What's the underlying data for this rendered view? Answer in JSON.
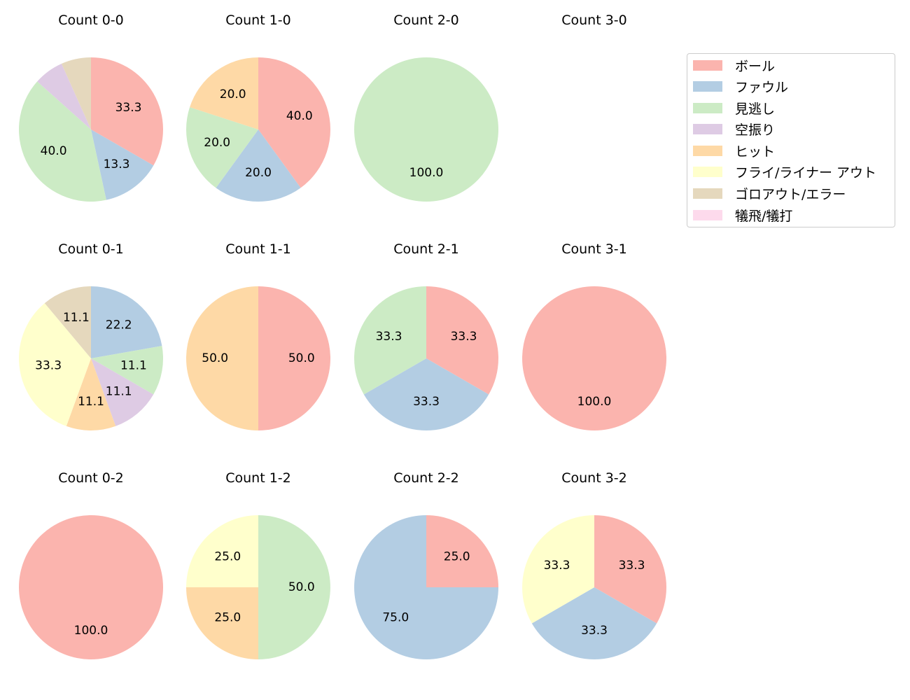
{
  "chart_data": {
    "type": "pie",
    "legend": {
      "position": "upper right",
      "entries": [
        {
          "label": "ボール",
          "color": "#fbb4ae"
        },
        {
          "label": "ファウル",
          "color": "#b3cde3"
        },
        {
          "label": "見逃し",
          "color": "#ccebc5"
        },
        {
          "label": "空振り",
          "color": "#decbe4"
        },
        {
          "label": "ヒット",
          "color": "#fed9a6"
        },
        {
          "label": "フライ/ライナー アウト",
          "color": "#ffffcc"
        },
        {
          "label": "ゴロアウト/エラー",
          "color": "#e5d8bd"
        },
        {
          "label": "犠飛/犠打",
          "color": "#fddaec"
        }
      ]
    },
    "categories": [
      "ボール",
      "ファウル",
      "見逃し",
      "空振り",
      "ヒット",
      "フライ/ライナー アウト",
      "ゴロアウト/エラー",
      "犠飛/犠打"
    ],
    "charts": [
      {
        "title": "Count 0-0",
        "row": 0,
        "col": 0,
        "values": [
          33.3,
          13.3,
          40.0,
          6.7,
          0,
          0,
          6.7,
          0
        ],
        "labels": [
          "33.3",
          "13.3",
          "40.0",
          "",
          "",
          "",
          "",
          ""
        ]
      },
      {
        "title": "Count 1-0",
        "row": 0,
        "col": 1,
        "values": [
          40.0,
          20.0,
          20.0,
          0,
          20.0,
          0,
          0,
          0
        ],
        "labels": [
          "40.0",
          "20.0",
          "20.0",
          "",
          "20.0",
          "",
          "",
          ""
        ]
      },
      {
        "title": "Count 2-0",
        "row": 0,
        "col": 2,
        "values": [
          0,
          0,
          100.0,
          0,
          0,
          0,
          0,
          0
        ],
        "labels": [
          "",
          "",
          "100.0",
          "",
          "",
          "",
          "",
          ""
        ]
      },
      {
        "title": "Count 3-0",
        "row": 0,
        "col": 3,
        "values": [
          0,
          0,
          0,
          0,
          0,
          0,
          0,
          0
        ],
        "labels": [
          "",
          "",
          "",
          "",
          "",
          "",
          "",
          ""
        ]
      },
      {
        "title": "Count 0-1",
        "row": 1,
        "col": 0,
        "values": [
          0,
          22.2,
          11.1,
          11.1,
          11.1,
          33.3,
          11.1,
          0
        ],
        "labels": [
          "",
          "22.2",
          "11.1",
          "11.1",
          "11.1",
          "33.3",
          "11.1",
          ""
        ]
      },
      {
        "title": "Count 1-1",
        "row": 1,
        "col": 1,
        "values": [
          50.0,
          0,
          0,
          0,
          50.0,
          0,
          0,
          0
        ],
        "labels": [
          "50.0",
          "",
          "",
          "",
          "50.0",
          "",
          "",
          ""
        ]
      },
      {
        "title": "Count 2-1",
        "row": 1,
        "col": 2,
        "values": [
          33.3,
          33.3,
          33.3,
          0,
          0,
          0,
          0,
          0
        ],
        "labels": [
          "33.3",
          "33.3",
          "33.3",
          "",
          "",
          "",
          "",
          ""
        ]
      },
      {
        "title": "Count 3-1",
        "row": 1,
        "col": 3,
        "values": [
          100.0,
          0,
          0,
          0,
          0,
          0,
          0,
          0
        ],
        "labels": [
          "100.0",
          "",
          "",
          "",
          "",
          "",
          "",
          ""
        ]
      },
      {
        "title": "Count 0-2",
        "row": 2,
        "col": 0,
        "values": [
          100.0,
          0,
          0,
          0,
          0,
          0,
          0,
          0
        ],
        "labels": [
          "100.0",
          "",
          "",
          "",
          "",
          "",
          "",
          ""
        ]
      },
      {
        "title": "Count 1-2",
        "row": 2,
        "col": 1,
        "values": [
          0,
          0,
          50.0,
          0,
          25.0,
          25.0,
          0,
          0
        ],
        "labels": [
          "",
          "",
          "50.0",
          "",
          "25.0",
          "25.0",
          "",
          ""
        ]
      },
      {
        "title": "Count 2-2",
        "row": 2,
        "col": 2,
        "values": [
          25.0,
          75.0,
          0,
          0,
          0,
          0,
          0,
          0
        ],
        "labels": [
          "25.0",
          "75.0",
          "",
          "",
          "",
          "",
          "",
          ""
        ]
      },
      {
        "title": "Count 3-2",
        "row": 2,
        "col": 3,
        "values": [
          33.3,
          33.3,
          0,
          0,
          0,
          33.3,
          0,
          0
        ],
        "labels": [
          "33.3",
          "33.3",
          "",
          "",
          "",
          "33.3",
          "",
          ""
        ]
      }
    ]
  }
}
